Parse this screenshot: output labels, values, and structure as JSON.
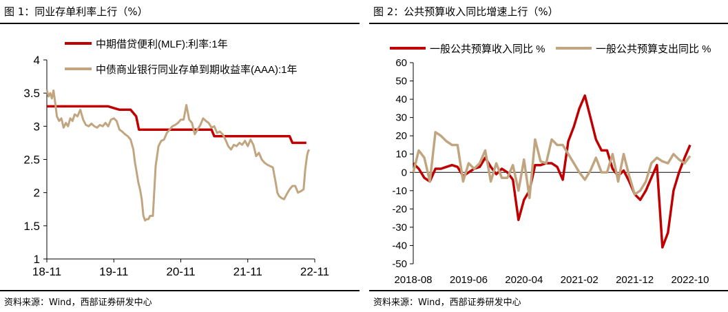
{
  "figures": [
    {
      "title": "图 1：同业存单利率上行（%）",
      "source": "资料来源：Wind，西部证券研发中心"
    },
    {
      "title": "图 2：公共预算收入同比增速上行（%）",
      "source": "资料来源：Wind，西部证券研发中心"
    }
  ],
  "chart_data": [
    {
      "type": "line",
      "title": "图 1：同业存单利率上行（%）",
      "x_tick_labels": [
        "18-11",
        "19-11",
        "20-11",
        "21-11",
        "22-11"
      ],
      "x_range_months": [
        0,
        48
      ],
      "ylim": [
        1,
        4
      ],
      "y_ticks": [
        "1",
        "1.5",
        "2",
        "2.5",
        "3",
        "3.5",
        "4"
      ],
      "legend_position": "top-left",
      "series": [
        {
          "name": "中期借贷便利(MLF):利率:1年",
          "color": "#c00000",
          "x": [
            0,
            11,
            13,
            15,
            16,
            16.5,
            29.5,
            30,
            43.5,
            44,
            46.5
          ],
          "y": [
            3.3,
            3.3,
            3.25,
            3.25,
            3.15,
            2.95,
            2.95,
            2.85,
            2.85,
            2.75,
            2.75
          ]
        },
        {
          "name": "中债商业银行同业存单到期收益率(AAA):1年",
          "color": "#c1a57f",
          "x": [
            0,
            0.3,
            0.6,
            0.9,
            1.2,
            1.5,
            1.8,
            2.2,
            2.6,
            3,
            3.4,
            3.8,
            4.2,
            4.6,
            5,
            5.5,
            6,
            6.5,
            7,
            7.5,
            8,
            8.5,
            9,
            9.5,
            10,
            10.5,
            11,
            11.5,
            12,
            12.5,
            13,
            13.5,
            14,
            14.5,
            15,
            15.5,
            15.8,
            16.1,
            16.4,
            16.7,
            17,
            17.3,
            17.6,
            17.9,
            18.2,
            18.5,
            19,
            19.5,
            20,
            20.5,
            21,
            21.5,
            22,
            22.5,
            23,
            23.5,
            24,
            24.5,
            25,
            25.5,
            26,
            26.5,
            27,
            27.5,
            28,
            28.5,
            29,
            29.5,
            30,
            30.5,
            31,
            31.5,
            32,
            32.5,
            33,
            33.5,
            34,
            34.5,
            35,
            35.5,
            36,
            36.5,
            37,
            37.5,
            38,
            38.5,
            39,
            39.5,
            40,
            40.5,
            41,
            41.3,
            41.6,
            42,
            42.5,
            43,
            43.5,
            44,
            44.5,
            45,
            45.5,
            46,
            46.3,
            46.6,
            46.8,
            47
          ],
          "y": [
            3.55,
            3.45,
            3.5,
            3.42,
            3.54,
            3.35,
            3.15,
            3.08,
            3.12,
            2.98,
            3.05,
            3.0,
            3.12,
            3.08,
            3.18,
            3.15,
            3.25,
            3.1,
            3.02,
            3.0,
            3.04,
            3.0,
            2.98,
            3.02,
            3.0,
            3.05,
            3.0,
            3.1,
            3.12,
            3.08,
            2.95,
            2.92,
            2.88,
            2.85,
            2.8,
            2.65,
            2.45,
            2.3,
            2.15,
            2.05,
            1.9,
            1.65,
            1.58,
            1.6,
            1.6,
            1.65,
            1.65,
            2.4,
            2.7,
            2.78,
            2.8,
            2.9,
            2.95,
            3.0,
            3.02,
            3.05,
            3.1,
            3.1,
            3.32,
            3.1,
            3.05,
            2.88,
            2.95,
            3.02,
            3.12,
            3.08,
            3.05,
            2.98,
            3.0,
            2.9,
            2.92,
            2.88,
            2.8,
            2.7,
            2.65,
            2.72,
            2.7,
            2.75,
            2.72,
            2.78,
            2.7,
            2.8,
            2.72,
            2.55,
            2.6,
            2.5,
            2.45,
            2.42,
            2.4,
            2.38,
            2.15,
            2.0,
            1.95,
            1.92,
            1.9,
            1.98,
            2.05,
            2.1,
            2.1,
            2.0,
            2.02,
            2.05,
            2.35,
            2.55,
            2.62,
            2.65
          ]
        }
      ]
    },
    {
      "type": "line",
      "title": "图 2：公共预算收入同比增速上行（%）",
      "x_tick_labels": [
        "2018-08",
        "2019-06",
        "2020-04",
        "2021-02",
        "2021-12",
        "2022-10"
      ],
      "x_range_months": [
        0,
        50
      ],
      "ylim": [
        -50,
        60
      ],
      "y_ticks": [
        "-50",
        "-40",
        "-30",
        "-20",
        "-10",
        "0",
        "10",
        "20",
        "30",
        "40",
        "50",
        "60"
      ],
      "legend_position": "top",
      "series": [
        {
          "name": "一般公共预算收入同比 %",
          "color": "#c00000",
          "x": [
            0,
            1,
            2,
            3,
            4,
            5,
            6,
            7,
            8,
            9,
            10,
            11,
            12,
            13,
            14,
            15,
            16,
            17,
            18,
            19,
            20,
            21,
            22,
            23,
            24,
            25,
            26,
            27,
            28,
            29,
            30,
            31,
            32,
            33,
            34,
            35,
            36,
            37,
            38,
            39,
            40,
            41,
            42,
            43,
            44,
            45,
            46,
            47,
            48,
            49,
            50
          ],
          "y": [
            5,
            2,
            -3,
            -5,
            2,
            2,
            3,
            4,
            3,
            -2,
            0,
            2,
            3,
            8,
            3,
            -1,
            2,
            0,
            -4,
            -26,
            -15,
            -10,
            4,
            4,
            5,
            5,
            3,
            -4,
            17,
            25,
            35,
            42,
            30,
            18,
            12,
            12,
            2,
            -2,
            1,
            -5,
            -12,
            -15,
            -10,
            -3,
            4,
            -41,
            -33,
            -10,
            0,
            8,
            15
          ]
        },
        {
          "name": "一般公共预算支出同比 %",
          "color": "#c1a57f",
          "x": [
            0,
            1,
            2,
            3,
            4,
            5,
            6,
            7,
            8,
            9,
            10,
            11,
            12,
            13,
            14,
            15,
            16,
            17,
            18,
            19,
            20,
            21,
            22,
            23,
            24,
            25,
            26,
            27,
            28,
            29,
            30,
            31,
            32,
            33,
            34,
            35,
            36,
            37,
            38,
            39,
            40,
            41,
            42,
            43,
            44,
            45,
            46,
            47,
            48,
            49,
            50
          ],
          "y": [
            0,
            12,
            8,
            -5,
            22,
            20,
            17,
            15,
            15,
            -5,
            5,
            2,
            5,
            12,
            -5,
            5,
            -3,
            -3,
            4,
            -10,
            7,
            -14,
            18,
            6,
            5,
            18,
            15,
            15,
            10,
            5,
            0,
            -4,
            1,
            8,
            0,
            0,
            10,
            -5,
            10,
            -2,
            -12,
            -10,
            -5,
            5,
            8,
            6,
            5,
            10,
            7,
            5,
            9
          ]
        }
      ]
    }
  ]
}
